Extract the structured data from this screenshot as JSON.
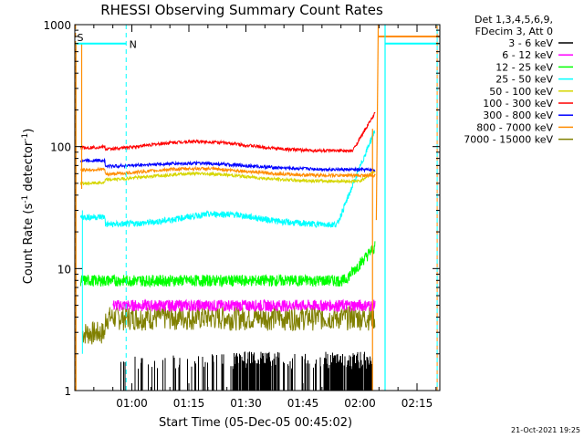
{
  "chart_data": {
    "type": "line",
    "title": "RHESSI Observing Summary Count Rates",
    "xlabel": "Start Time (05-Dec-05 00:45:02)",
    "ylabel_main": "Count Rate (s",
    "ylabel_sup1": "-1",
    "ylabel_mid": " detector",
    "ylabel_sup2": "-1",
    "ylabel_end": ")",
    "ylim": [
      1,
      1000
    ],
    "yscale": "log",
    "xlim_minutes": [
      45.0,
      141.0
    ],
    "x_ticks": [
      {
        "label": "01:00",
        "minute": 60
      },
      {
        "label": "01:15",
        "minute": 75
      },
      {
        "label": "01:30",
        "minute": 90
      },
      {
        "label": "01:45",
        "minute": 105
      },
      {
        "label": "02:00",
        "minute": 120
      },
      {
        "label": "02:15",
        "minute": 135
      }
    ],
    "y_ticks": [
      {
        "label": "1",
        "value": 1
      },
      {
        "label": "10",
        "value": 10
      },
      {
        "label": "100",
        "value": 100
      },
      {
        "label": "1000",
        "value": 1000
      }
    ],
    "legend_header": [
      "Det 1,3,4,5,6,9,",
      "FDecim 3, Att 0"
    ],
    "series": [
      {
        "name": "3 - 6 keV",
        "color": "#000000"
      },
      {
        "name": "6 - 12 keV",
        "color": "#ff00ff"
      },
      {
        "name": "12 - 25 keV",
        "color": "#00ff00"
      },
      {
        "name": "25 - 50 keV",
        "color": "#00ffff"
      },
      {
        "name": "50 - 100 keV",
        "color": "#d6d600"
      },
      {
        "name": "100 - 300 keV",
        "color": "#ff0000"
      },
      {
        "name": "300 - 800 keV",
        "color": "#0000ff"
      },
      {
        "name": "800 - 7000 keV",
        "color": "#ff8c00"
      },
      {
        "name": "7000 - 15000 keV",
        "color": "#808000"
      }
    ],
    "annotations": [
      {
        "text": "S",
        "color": "#ff8c00"
      },
      {
        "text": "N",
        "color": "#00ffff"
      }
    ],
    "timestamp": "21-Oct-2021 19:25"
  }
}
